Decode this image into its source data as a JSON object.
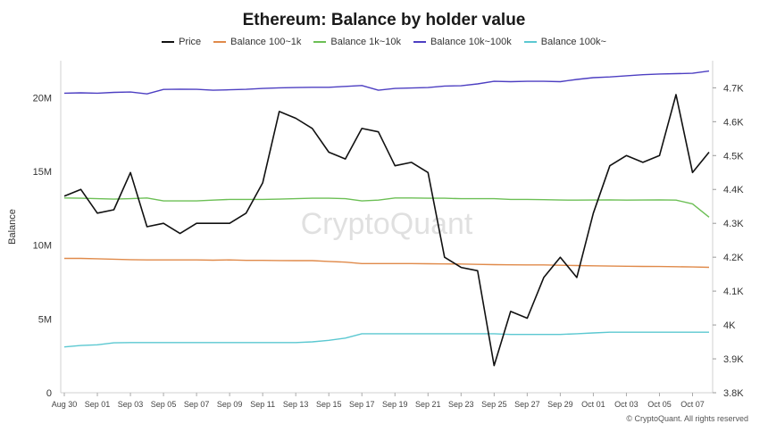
{
  "chart_data": {
    "type": "line",
    "title": "Ethereum: Balance by holder value",
    "ylabel": "Balance",
    "watermark": "CryptoQuant",
    "copyright": "© CryptoQuant. All rights reserved",
    "x_tick_labels": [
      "Aug 30",
      "Sep 01",
      "Sep 03",
      "Sep 05",
      "Sep 07",
      "Sep 09",
      "Sep 11",
      "Sep 13",
      "Sep 15",
      "Sep 17",
      "Sep 19",
      "Sep 21",
      "Sep 23",
      "Sep 25",
      "Sep 27",
      "Sep 29",
      "Oct 01",
      "Oct 03",
      "Oct 05",
      "Oct 07"
    ],
    "x_tick_index": [
      0,
      2,
      4,
      6,
      8,
      10,
      12,
      14,
      16,
      18,
      20,
      22,
      24,
      26,
      28,
      30,
      32,
      34,
      36,
      38
    ],
    "y_left": {
      "min": 0,
      "max": 22500000,
      "ticks": [
        0,
        5000000,
        10000000,
        15000000,
        20000000
      ],
      "tick_labels": [
        "0",
        "5M",
        "10M",
        "15M",
        "20M"
      ]
    },
    "y_right": {
      "min": 3800,
      "max": 4780,
      "ticks": [
        3800,
        3900,
        4000,
        4100,
        4200,
        4300,
        4400,
        4500,
        4600,
        4700
      ],
      "tick_labels": [
        "3.8K",
        "3.9K",
        "4K",
        "4.1K",
        "4.2K",
        "4.3K",
        "4.4K",
        "4.5K",
        "4.6K",
        "4.7K"
      ]
    },
    "x_count": 40,
    "series": [
      {
        "name": "Price",
        "axis": "right",
        "color": "#111111",
        "values": [
          4380,
          4400,
          4330,
          4340,
          4450,
          4290,
          4300,
          4270,
          4300,
          4300,
          4300,
          4330,
          4420,
          4630,
          4610,
          4580,
          4510,
          4490,
          4580,
          4570,
          4470,
          4480,
          4450,
          4200,
          4170,
          4160,
          3880,
          4040,
          4020,
          4140,
          4200,
          4140,
          4330,
          4470,
          4500,
          4480,
          4500,
          4680,
          4450,
          4510
        ]
      },
      {
        "name": "Balance 100~1k",
        "axis": "left",
        "color": "#e08a4a",
        "values": [
          9100000,
          9100000,
          9080000,
          9050000,
          9020000,
          9000000,
          9000000,
          9000000,
          9000000,
          8980000,
          9000000,
          8970000,
          8970000,
          8960000,
          8950000,
          8950000,
          8900000,
          8850000,
          8750000,
          8750000,
          8750000,
          8750000,
          8740000,
          8730000,
          8720000,
          8700000,
          8680000,
          8670000,
          8660000,
          8660000,
          8640000,
          8620000,
          8600000,
          8580000,
          8570000,
          8560000,
          8550000,
          8540000,
          8520000,
          8500000
        ]
      },
      {
        "name": "Balance 1k~10k",
        "axis": "left",
        "color": "#6cbf55",
        "values": [
          13200000,
          13180000,
          13150000,
          13120000,
          13150000,
          13200000,
          13000000,
          13000000,
          13000000,
          13050000,
          13100000,
          13100000,
          13100000,
          13120000,
          13150000,
          13180000,
          13180000,
          13150000,
          13000000,
          13050000,
          13200000,
          13200000,
          13180000,
          13180000,
          13150000,
          13150000,
          13150000,
          13100000,
          13100000,
          13080000,
          13060000,
          13050000,
          13060000,
          13070000,
          13050000,
          13060000,
          13070000,
          13050000,
          12800000,
          11900000
        ]
      },
      {
        "name": "Balance 10k~100k",
        "axis": "left",
        "color": "#4d3fc2",
        "values": [
          20300000,
          20320000,
          20300000,
          20350000,
          20380000,
          20250000,
          20550000,
          20570000,
          20560000,
          20500000,
          20530000,
          20560000,
          20620000,
          20660000,
          20680000,
          20700000,
          20700000,
          20760000,
          20820000,
          20500000,
          20620000,
          20650000,
          20680000,
          20780000,
          20800000,
          20930000,
          21100000,
          21080000,
          21100000,
          21100000,
          21080000,
          21230000,
          21350000,
          21400000,
          21480000,
          21550000,
          21600000,
          21620000,
          21650000,
          21800000
        ]
      },
      {
        "name": "Balance 100k~",
        "axis": "left",
        "color": "#5bc8d1",
        "values": [
          3100000,
          3200000,
          3250000,
          3380000,
          3400000,
          3400000,
          3400000,
          3400000,
          3400000,
          3400000,
          3400000,
          3400000,
          3400000,
          3400000,
          3400000,
          3450000,
          3550000,
          3700000,
          4000000,
          4000000,
          4000000,
          4000000,
          4000000,
          4000000,
          4000000,
          4000000,
          4000000,
          3950000,
          3950000,
          3950000,
          3950000,
          4000000,
          4050000,
          4100000,
          4100000,
          4100000,
          4100000,
          4100000,
          4100000,
          4100000
        ]
      }
    ]
  }
}
